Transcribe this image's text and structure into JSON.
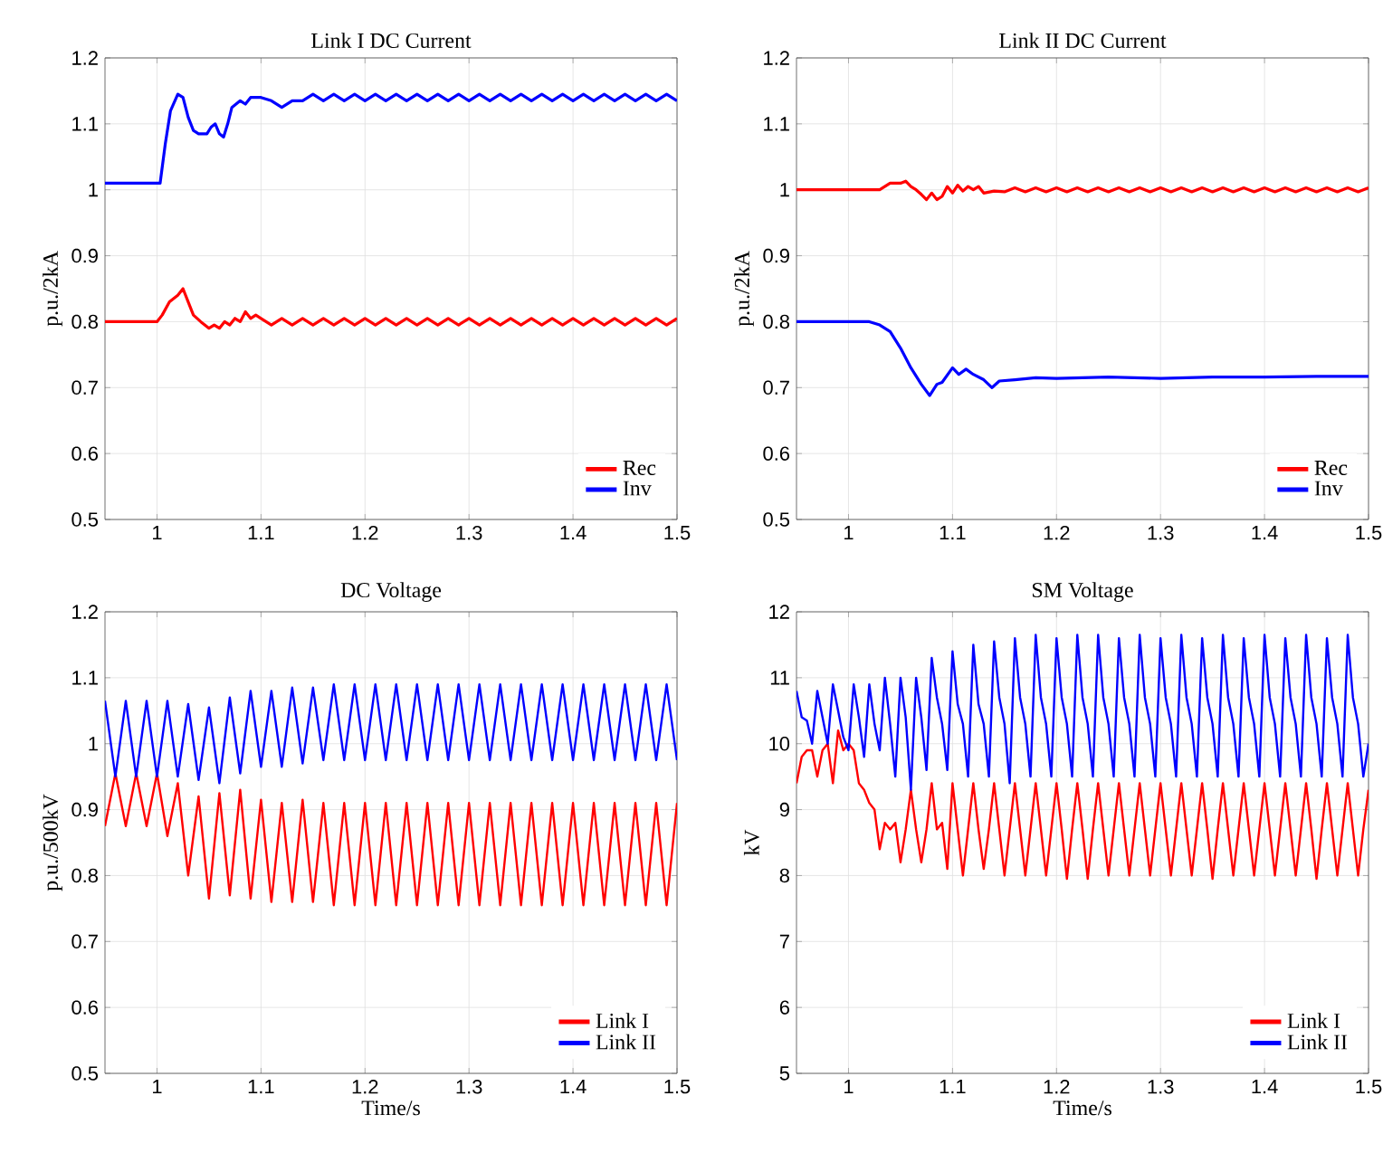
{
  "chart_data": [
    {
      "type": "line",
      "title": "Link I DC Current",
      "ylabel": "p.u./2kA",
      "xlim": [
        0.95,
        1.5
      ],
      "ylim": [
        0.5,
        1.2
      ],
      "xticks": [
        1,
        1.1,
        1.2,
        1.3,
        1.4,
        1.5
      ],
      "yticks": [
        0.5,
        0.6,
        0.7,
        0.8,
        0.9,
        1,
        1.1,
        1.2
      ],
      "grid": true,
      "legend": "bottom right",
      "series": [
        {
          "name": "Rec",
          "color": "#ff0000",
          "x": [
            0.95,
            1.0,
            1.005,
            1.012,
            1.02,
            1.025,
            1.03,
            1.035,
            1.042,
            1.05,
            1.055,
            1.06,
            1.065,
            1.07,
            1.075,
            1.08,
            1.085,
            1.09,
            1.095,
            1.1,
            1.11,
            1.12,
            1.13,
            1.14,
            1.15,
            1.16,
            1.17,
            1.18,
            1.19,
            1.2,
            1.21,
            1.22,
            1.23,
            1.24,
            1.25,
            1.26,
            1.27,
            1.28,
            1.29,
            1.3,
            1.31,
            1.32,
            1.33,
            1.34,
            1.35,
            1.36,
            1.37,
            1.38,
            1.39,
            1.4,
            1.41,
            1.42,
            1.43,
            1.44,
            1.45,
            1.46,
            1.47,
            1.48,
            1.49,
            1.5
          ],
          "values": [
            0.8,
            0.8,
            0.81,
            0.83,
            0.84,
            0.85,
            0.83,
            0.81,
            0.8,
            0.79,
            0.795,
            0.79,
            0.8,
            0.795,
            0.805,
            0.8,
            0.815,
            0.805,
            0.81,
            0.805,
            0.795,
            0.805,
            0.795,
            0.805,
            0.795,
            0.805,
            0.795,
            0.805,
            0.795,
            0.805,
            0.795,
            0.805,
            0.795,
            0.805,
            0.795,
            0.805,
            0.795,
            0.805,
            0.795,
            0.805,
            0.795,
            0.805,
            0.795,
            0.805,
            0.795,
            0.805,
            0.795,
            0.805,
            0.795,
            0.805,
            0.795,
            0.805,
            0.795,
            0.805,
            0.795,
            0.805,
            0.795,
            0.805,
            0.795,
            0.805
          ]
        },
        {
          "name": "Inv",
          "color": "#0000ff",
          "x": [
            0.95,
            1.0,
            1.003,
            1.008,
            1.013,
            1.02,
            1.025,
            1.03,
            1.035,
            1.04,
            1.048,
            1.052,
            1.056,
            1.06,
            1.064,
            1.068,
            1.072,
            1.08,
            1.085,
            1.09,
            1.1,
            1.11,
            1.12,
            1.13,
            1.14,
            1.15,
            1.16,
            1.17,
            1.18,
            1.19,
            1.2,
            1.21,
            1.22,
            1.23,
            1.24,
            1.25,
            1.26,
            1.27,
            1.28,
            1.29,
            1.3,
            1.31,
            1.32,
            1.33,
            1.34,
            1.35,
            1.36,
            1.37,
            1.38,
            1.39,
            1.4,
            1.41,
            1.42,
            1.43,
            1.44,
            1.45,
            1.46,
            1.47,
            1.48,
            1.49,
            1.5
          ],
          "values": [
            1.01,
            1.01,
            1.01,
            1.07,
            1.12,
            1.145,
            1.14,
            1.11,
            1.09,
            1.085,
            1.085,
            1.095,
            1.1,
            1.085,
            1.08,
            1.1,
            1.125,
            1.135,
            1.13,
            1.14,
            1.14,
            1.135,
            1.125,
            1.135,
            1.135,
            1.145,
            1.135,
            1.145,
            1.135,
            1.145,
            1.135,
            1.145,
            1.135,
            1.145,
            1.135,
            1.145,
            1.135,
            1.145,
            1.135,
            1.145,
            1.135,
            1.145,
            1.135,
            1.145,
            1.135,
            1.145,
            1.135,
            1.145,
            1.135,
            1.145,
            1.135,
            1.145,
            1.135,
            1.145,
            1.135,
            1.145,
            1.135,
            1.145,
            1.135,
            1.145,
            1.135
          ]
        }
      ]
    },
    {
      "type": "line",
      "title": "Link II DC Current",
      "ylabel": "p.u./2kA",
      "xlim": [
        0.95,
        1.5
      ],
      "ylim": [
        0.5,
        1.2
      ],
      "xticks": [
        1,
        1.1,
        1.2,
        1.3,
        1.4,
        1.5
      ],
      "yticks": [
        0.5,
        0.6,
        0.7,
        0.8,
        0.9,
        1,
        1.1,
        1.2
      ],
      "grid": true,
      "legend": "bottom right",
      "series": [
        {
          "name": "Rec",
          "color": "#ff0000",
          "x": [
            0.95,
            1.0,
            1.03,
            1.04,
            1.05,
            1.055,
            1.06,
            1.065,
            1.07,
            1.075,
            1.08,
            1.085,
            1.09,
            1.095,
            1.1,
            1.105,
            1.11,
            1.115,
            1.12,
            1.125,
            1.13,
            1.14,
            1.15,
            1.16,
            1.17,
            1.18,
            1.19,
            1.2,
            1.21,
            1.22,
            1.23,
            1.24,
            1.25,
            1.26,
            1.27,
            1.28,
            1.29,
            1.3,
            1.31,
            1.32,
            1.33,
            1.34,
            1.35,
            1.36,
            1.37,
            1.38,
            1.39,
            1.4,
            1.41,
            1.42,
            1.43,
            1.44,
            1.45,
            1.46,
            1.47,
            1.48,
            1.49,
            1.5
          ],
          "values": [
            1.0,
            1.0,
            1.0,
            1.01,
            1.01,
            1.013,
            1.005,
            1.0,
            0.993,
            0.985,
            0.995,
            0.985,
            0.99,
            1.005,
            0.995,
            1.007,
            0.998,
            1.005,
            1.0,
            1.005,
            0.995,
            0.998,
            0.997,
            1.003,
            0.997,
            1.003,
            0.997,
            1.003,
            0.997,
            1.003,
            0.997,
            1.003,
            0.997,
            1.003,
            0.997,
            1.003,
            0.997,
            1.003,
            0.997,
            1.003,
            0.997,
            1.003,
            0.997,
            1.003,
            0.997,
            1.003,
            0.997,
            1.003,
            0.997,
            1.003,
            0.997,
            1.003,
            0.997,
            1.003,
            0.997,
            1.003,
            0.997,
            1.003
          ]
        },
        {
          "name": "Inv",
          "color": "#0000ff",
          "x": [
            0.95,
            1.02,
            1.03,
            1.04,
            1.05,
            1.06,
            1.07,
            1.078,
            1.085,
            1.09,
            1.1,
            1.106,
            1.113,
            1.12,
            1.13,
            1.138,
            1.145,
            1.16,
            1.18,
            1.2,
            1.25,
            1.3,
            1.35,
            1.4,
            1.45,
            1.5
          ],
          "values": [
            0.8,
            0.8,
            0.795,
            0.785,
            0.76,
            0.73,
            0.705,
            0.688,
            0.705,
            0.708,
            0.73,
            0.72,
            0.728,
            0.72,
            0.712,
            0.7,
            0.71,
            0.712,
            0.715,
            0.714,
            0.716,
            0.714,
            0.716,
            0.716,
            0.717,
            0.717
          ]
        }
      ]
    },
    {
      "type": "line",
      "title": "DC Voltage",
      "xlabel": "Time/s",
      "ylabel": "p.u./500kV",
      "xlim": [
        0.95,
        1.5
      ],
      "ylim": [
        0.5,
        1.2
      ],
      "xticks": [
        1,
        1.1,
        1.2,
        1.3,
        1.4,
        1.5
      ],
      "yticks": [
        0.5,
        0.6,
        0.7,
        0.8,
        0.9,
        1,
        1.1,
        1.2
      ],
      "grid": true,
      "legend": "bottom right",
      "x": [
        0.95,
        0.96,
        0.97,
        0.98,
        0.99,
        1.0,
        1.01,
        1.02,
        1.03,
        1.04,
        1.05,
        1.06,
        1.07,
        1.08,
        1.09,
        1.1,
        1.11,
        1.12,
        1.13,
        1.14,
        1.15,
        1.16,
        1.17,
        1.18,
        1.19,
        1.2,
        1.21,
        1.22,
        1.23,
        1.24,
        1.25,
        1.26,
        1.27,
        1.28,
        1.29,
        1.3,
        1.31,
        1.32,
        1.33,
        1.34,
        1.35,
        1.36,
        1.37,
        1.38,
        1.39,
        1.4,
        1.41,
        1.42,
        1.43,
        1.44,
        1.45,
        1.46,
        1.47,
        1.48,
        1.49,
        1.5
      ],
      "series": [
        {
          "name": "Link I",
          "color": "#ff0000",
          "values": [
            0.875,
            0.955,
            0.875,
            0.955,
            0.875,
            0.955,
            0.86,
            0.94,
            0.8,
            0.92,
            0.765,
            0.925,
            0.77,
            0.93,
            0.765,
            0.915,
            0.76,
            0.91,
            0.76,
            0.915,
            0.76,
            0.91,
            0.755,
            0.91,
            0.755,
            0.91,
            0.755,
            0.91,
            0.755,
            0.91,
            0.755,
            0.91,
            0.755,
            0.91,
            0.755,
            0.91,
            0.755,
            0.91,
            0.755,
            0.91,
            0.755,
            0.91,
            0.755,
            0.91,
            0.755,
            0.91,
            0.755,
            0.91,
            0.755,
            0.91,
            0.755,
            0.91,
            0.755,
            0.91,
            0.755,
            0.91
          ]
        },
        {
          "name": "Link II",
          "color": "#0000ff",
          "values": [
            1.065,
            0.95,
            1.065,
            0.95,
            1.065,
            0.95,
            1.065,
            0.95,
            1.06,
            0.945,
            1.055,
            0.94,
            1.07,
            0.955,
            1.08,
            0.965,
            1.08,
            0.965,
            1.085,
            0.97,
            1.085,
            0.975,
            1.09,
            0.975,
            1.09,
            0.975,
            1.09,
            0.975,
            1.09,
            0.975,
            1.09,
            0.975,
            1.09,
            0.975,
            1.09,
            0.975,
            1.09,
            0.975,
            1.09,
            0.975,
            1.09,
            0.975,
            1.09,
            0.975,
            1.09,
            0.975,
            1.09,
            0.975,
            1.09,
            0.975,
            1.09,
            0.975,
            1.09,
            0.975,
            1.09,
            0.975
          ]
        }
      ]
    },
    {
      "type": "line",
      "title": "SM Voltage",
      "xlabel": "Time/s",
      "ylabel": "kV",
      "xlim": [
        0.95,
        1.5
      ],
      "ylim": [
        5,
        12
      ],
      "xticks": [
        1,
        1.1,
        1.2,
        1.3,
        1.4,
        1.5
      ],
      "yticks": [
        5,
        6,
        7,
        8,
        9,
        10,
        11,
        12
      ],
      "grid": true,
      "legend": "bottom right",
      "x": [
        0.95,
        0.955,
        0.96,
        0.965,
        0.97,
        0.975,
        0.98,
        0.985,
        0.99,
        0.995,
        1.0,
        1.005,
        1.01,
        1.015,
        1.02,
        1.025,
        1.03,
        1.035,
        1.04,
        1.045,
        1.05,
        1.055,
        1.06,
        1.065,
        1.07,
        1.075,
        1.08,
        1.085,
        1.09,
        1.095,
        1.1,
        1.105,
        1.11,
        1.115,
        1.12,
        1.125,
        1.13,
        1.135,
        1.14,
        1.145,
        1.15,
        1.155,
        1.16,
        1.165,
        1.17,
        1.175,
        1.18,
        1.185,
        1.19,
        1.195,
        1.2,
        1.205,
        1.21,
        1.215,
        1.22,
        1.225,
        1.23,
        1.235,
        1.24,
        1.245,
        1.25,
        1.255,
        1.26,
        1.265,
        1.27,
        1.275,
        1.28,
        1.285,
        1.29,
        1.295,
        1.3,
        1.305,
        1.31,
        1.315,
        1.32,
        1.325,
        1.33,
        1.335,
        1.34,
        1.345,
        1.35,
        1.355,
        1.36,
        1.365,
        1.37,
        1.375,
        1.38,
        1.385,
        1.39,
        1.395,
        1.4,
        1.405,
        1.41,
        1.415,
        1.42,
        1.425,
        1.43,
        1.435,
        1.44,
        1.445,
        1.45,
        1.455,
        1.46,
        1.465,
        1.47,
        1.475,
        1.48,
        1.485,
        1.49,
        1.495,
        1.5
      ],
      "series": [
        {
          "name": "Link I",
          "color": "#ff0000",
          "values": [
            9.4,
            9.8,
            9.9,
            9.9,
            9.5,
            9.9,
            10.0,
            9.4,
            10.2,
            9.9,
            10.0,
            9.9,
            9.4,
            9.3,
            9.1,
            9.0,
            8.4,
            8.8,
            8.7,
            8.8,
            8.2,
            8.7,
            9.3,
            8.7,
            8.2,
            8.7,
            9.4,
            8.7,
            8.8,
            8.1,
            9.4,
            8.7,
            8.0,
            8.7,
            9.4,
            8.7,
            8.1,
            8.7,
            9.4,
            8.7,
            8.0,
            8.7,
            9.4,
            8.7,
            8.0,
            8.7,
            9.4,
            8.7,
            8.0,
            8.7,
            9.4,
            8.7,
            7.95,
            8.7,
            9.4,
            8.7,
            7.95,
            8.7,
            9.4,
            8.7,
            8.0,
            8.7,
            9.4,
            8.7,
            8.0,
            8.7,
            9.4,
            8.7,
            8.0,
            8.7,
            9.4,
            8.7,
            8.0,
            8.7,
            9.4,
            8.7,
            8.0,
            8.7,
            9.4,
            8.7,
            7.95,
            8.7,
            9.4,
            8.7,
            8.0,
            8.7,
            9.4,
            8.7,
            8.0,
            8.7,
            9.4,
            8.7,
            8.0,
            8.7,
            9.4,
            8.7,
            8.0,
            8.7,
            9.4,
            8.7,
            7.95,
            8.7,
            9.4,
            8.7,
            8.0,
            8.7,
            9.4,
            8.7,
            8.0,
            8.7,
            9.3
          ]
        },
        {
          "name": "Link II",
          "color": "#0000ff",
          "values": [
            10.8,
            10.4,
            10.35,
            10.0,
            10.8,
            10.4,
            10.0,
            10.9,
            10.5,
            10.1,
            9.9,
            10.9,
            10.4,
            9.8,
            10.9,
            10.3,
            9.9,
            11.0,
            10.3,
            9.5,
            11.0,
            10.4,
            9.3,
            11.0,
            10.4,
            9.6,
            11.3,
            10.7,
            10.3,
            9.6,
            11.4,
            10.6,
            10.3,
            9.5,
            11.5,
            10.6,
            10.3,
            9.5,
            11.55,
            10.7,
            10.3,
            9.4,
            11.6,
            10.7,
            10.3,
            9.5,
            11.65,
            10.7,
            10.3,
            9.5,
            11.6,
            10.7,
            10.3,
            9.5,
            11.65,
            10.7,
            10.3,
            9.5,
            11.65,
            10.7,
            10.3,
            9.5,
            11.6,
            10.7,
            10.3,
            9.5,
            11.65,
            10.7,
            10.3,
            9.5,
            11.6,
            10.7,
            10.3,
            9.5,
            11.65,
            10.7,
            10.3,
            9.5,
            11.6,
            10.7,
            10.3,
            9.5,
            11.65,
            10.7,
            10.3,
            9.5,
            11.6,
            10.7,
            10.3,
            9.5,
            11.65,
            10.7,
            10.3,
            9.5,
            11.6,
            10.7,
            10.3,
            9.5,
            11.65,
            10.7,
            10.3,
            9.5,
            11.6,
            10.7,
            10.3,
            9.5,
            11.65,
            10.7,
            10.3,
            9.5,
            10.0
          ]
        }
      ]
    }
  ]
}
